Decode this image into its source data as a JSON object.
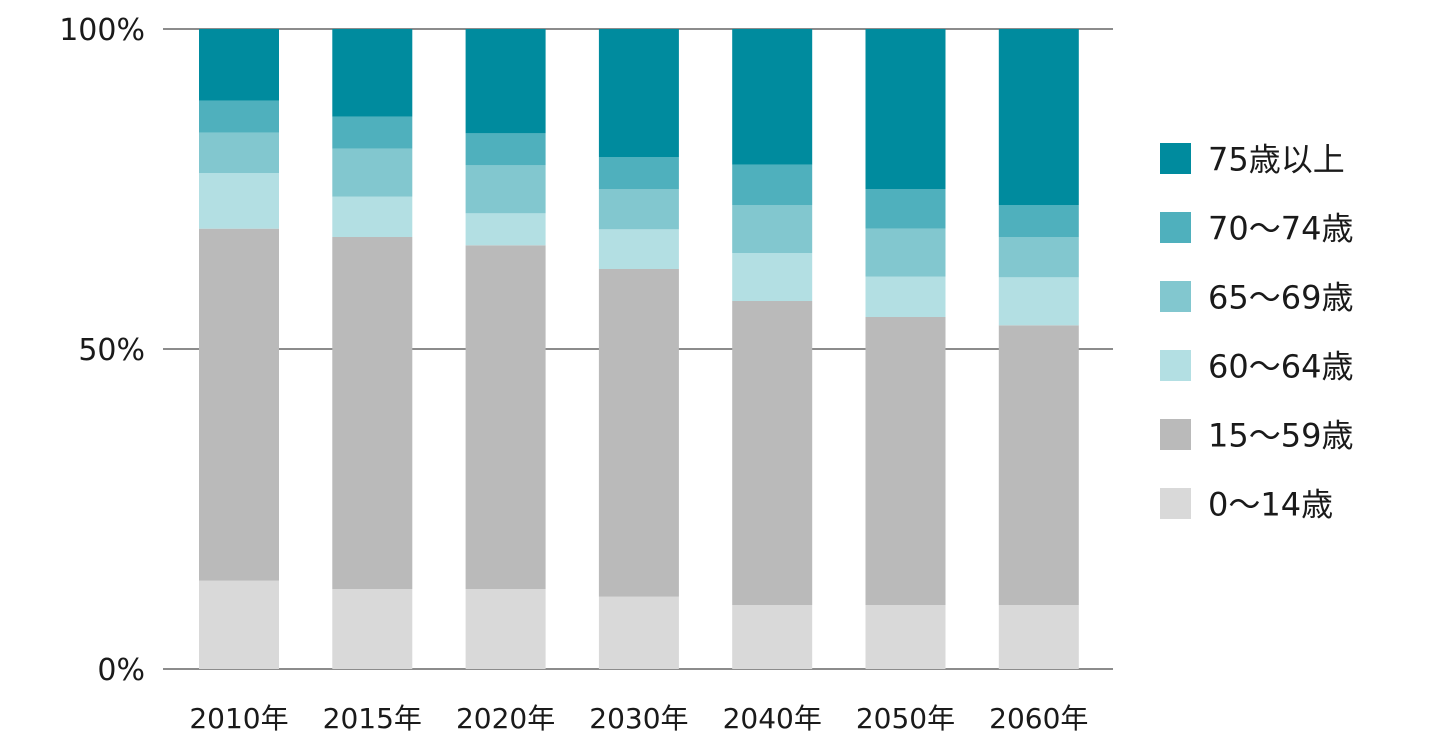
{
  "chart_data": {
    "type": "bar",
    "stacked": true,
    "percent_stacked": true,
    "title": "",
    "xlabel": "",
    "ylabel": "",
    "ylim": [
      0,
      100
    ],
    "yticks": [
      {
        "value": 0,
        "label": "0%"
      },
      {
        "value": 50,
        "label": "50%"
      },
      {
        "value": 100,
        "label": "100%"
      }
    ],
    "grid": true,
    "legend_position": "right",
    "categories": [
      "2010年",
      "2015年",
      "2020年",
      "2030年",
      "2040年",
      "2050年",
      "2060年"
    ],
    "series": [
      {
        "name": "0〜14歳",
        "color": "#d9d9d9",
        "values": [
          13.8,
          12.5,
          12.5,
          11.3,
          10.0,
          10.0,
          10.0
        ]
      },
      {
        "name": "15〜59歳",
        "color": "#bababa",
        "values": [
          55.0,
          55.0,
          53.7,
          51.2,
          47.5,
          45.0,
          43.7
        ]
      },
      {
        "name": "60〜64歳",
        "color": "#b3dfe3",
        "values": [
          8.7,
          6.3,
          5.0,
          6.2,
          7.5,
          6.3,
          7.5
        ]
      },
      {
        "name": "65〜69歳",
        "color": "#82c7cf",
        "values": [
          6.3,
          7.5,
          7.5,
          6.3,
          7.5,
          7.5,
          6.3
        ]
      },
      {
        "name": "70〜74歳",
        "color": "#4fb0bd",
        "values": [
          5.0,
          5.0,
          5.0,
          5.0,
          6.3,
          6.2,
          5.0
        ]
      },
      {
        "name": "75歳以上",
        "color": "#008b9e",
        "values": [
          11.2,
          13.7,
          16.3,
          20.0,
          21.2,
          25.0,
          27.5
        ]
      }
    ],
    "legend_order": [
      "75歳以上",
      "70〜74歳",
      "65〜69歳",
      "60〜64歳",
      "15〜59歳",
      "0〜14歳"
    ]
  }
}
